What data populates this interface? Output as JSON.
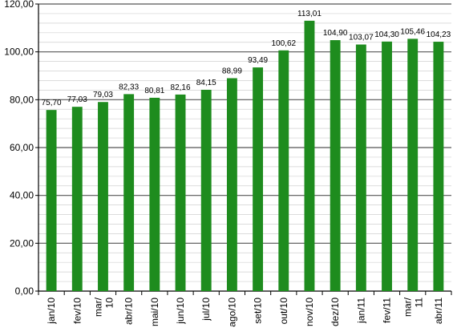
{
  "chart_data": {
    "type": "bar",
    "categories": [
      "jan/10",
      "fev/10",
      "mar/ 10",
      "abr/10",
      "mai/10",
      "jun/10",
      "jul/10",
      "ago/10",
      "set/10",
      "out/10",
      "nov/10",
      "dez/10",
      "jan/11",
      "fev/11",
      "mar/ 11",
      "abr/11"
    ],
    "values": [
      75.7,
      77.03,
      79.03,
      82.33,
      80.81,
      82.16,
      84.15,
      88.99,
      93.49,
      100.62,
      113.01,
      104.9,
      103.07,
      104.3,
      105.46,
      104.23
    ],
    "value_labels": [
      "75,70",
      "77,03",
      "79,03",
      "82,33",
      "80,81",
      "82,16",
      "84,15",
      "88,99",
      "93,49",
      "100,62",
      "113,01",
      "104,90",
      "103,07",
      "104,30",
      "105,46",
      "104,23"
    ],
    "y_ticks": [
      0,
      20,
      40,
      60,
      80,
      100,
      120
    ],
    "y_tick_labels": [
      "0,00",
      "20,00",
      "40,00",
      "60,00",
      "80,00",
      "100,00",
      "120,00"
    ],
    "ylim": [
      0,
      120
    ],
    "title": "",
    "xlabel": "",
    "ylabel": "",
    "grid": true,
    "bar_color": "#1e8c1e",
    "grid_color": "#b0b0b0"
  }
}
